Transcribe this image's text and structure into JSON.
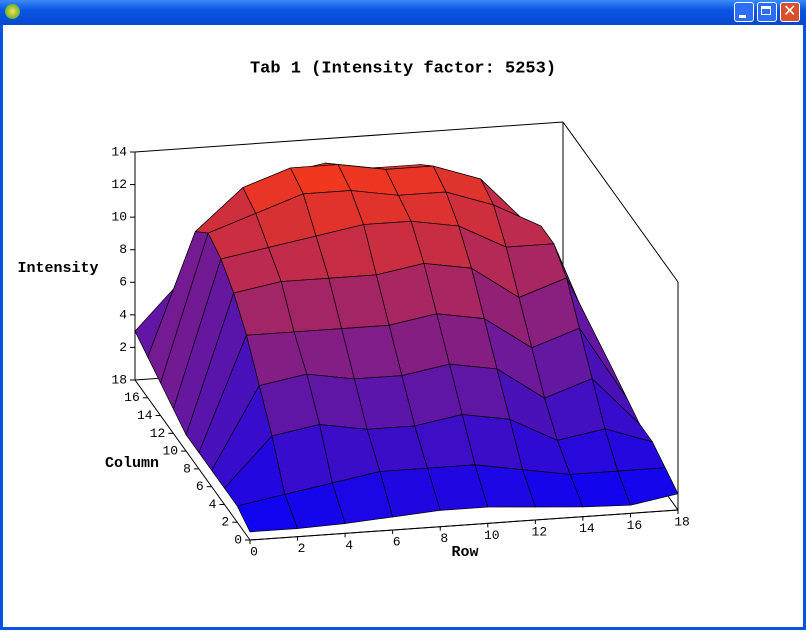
{
  "chart_data": {
    "type": "surface",
    "title": "Tab 1 (Intensity factor: 5253)",
    "x_label": "Row",
    "y_label": "Column",
    "z_label": "Intensity",
    "x": [
      0,
      2,
      4,
      6,
      8,
      10,
      12,
      14,
      16,
      18
    ],
    "y": [
      0,
      2,
      4,
      6,
      8,
      10,
      12,
      14,
      16,
      18
    ],
    "z": [
      [
        0.5,
        0.5,
        0.6,
        0.8,
        1,
        1,
        0.8,
        0.6,
        0.5,
        1
      ],
      [
        1,
        1.5,
        2,
        2.5,
        2.5,
        2.5,
        2,
        1.5,
        1.5,
        1.5
      ],
      [
        1,
        4,
        4.5,
        4,
        4,
        4.5,
        4,
        2.5,
        3,
        2
      ],
      [
        1,
        6,
        6.5,
        6,
        6,
        6.5,
        6,
        4,
        5,
        2
      ],
      [
        1,
        8,
        8,
        8,
        8,
        8.5,
        8,
        6,
        7,
        2.5
      ],
      [
        1,
        9.5,
        10,
        10,
        10,
        10.5,
        10,
        8,
        9,
        3
      ],
      [
        1.5,
        10.5,
        11,
        11.5,
        12,
        12,
        11.5,
        10,
        10,
        3
      ],
      [
        2,
        11,
        12,
        13,
        13,
        12.5,
        12.5,
        11.5,
        10,
        2.5
      ],
      [
        2.5,
        10,
        12.5,
        13.5,
        13.5,
        13,
        13,
        12,
        9,
        2
      ],
      [
        3,
        6,
        10,
        12,
        12.5,
        12,
        12,
        11,
        6,
        2
      ]
    ],
    "xlim": [
      0,
      18
    ],
    "ylim": [
      0,
      18
    ],
    "zlim": [
      0,
      14
    ],
    "xticks": [
      0,
      2,
      4,
      6,
      8,
      10,
      12,
      14,
      16,
      18
    ],
    "yticks": [
      0,
      2,
      4,
      6,
      8,
      10,
      12,
      14,
      16,
      18
    ],
    "zticks": [
      2,
      4,
      6,
      8,
      10,
      12,
      14
    ],
    "low_color": "#0000ff",
    "high_color": "#ff3a10"
  }
}
